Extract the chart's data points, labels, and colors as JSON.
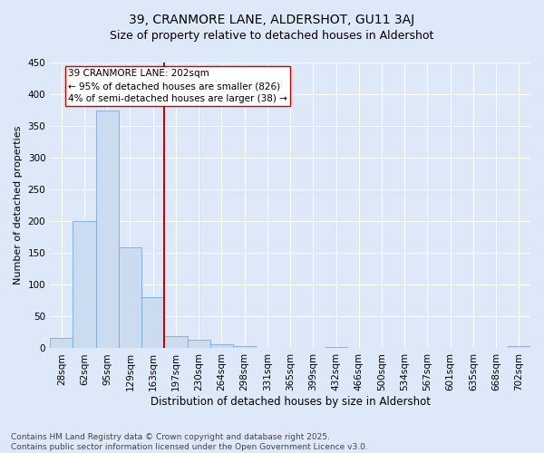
{
  "title": "39, CRANMORE LANE, ALDERSHOT, GU11 3AJ",
  "subtitle": "Size of property relative to detached houses in Aldershot",
  "xlabel": "Distribution of detached houses by size in Aldershot",
  "ylabel": "Number of detached properties",
  "categories": [
    "28sqm",
    "62sqm",
    "95sqm",
    "129sqm",
    "163sqm",
    "197sqm",
    "230sqm",
    "264sqm",
    "298sqm",
    "331sqm",
    "365sqm",
    "399sqm",
    "432sqm",
    "466sqm",
    "500sqm",
    "534sqm",
    "567sqm",
    "601sqm",
    "635sqm",
    "668sqm",
    "702sqm"
  ],
  "values": [
    16,
    201,
    375,
    159,
    80,
    19,
    13,
    6,
    4,
    0,
    0,
    0,
    2,
    0,
    0,
    0,
    0,
    0,
    0,
    0,
    3
  ],
  "bar_color": "#ccdcf0",
  "bar_edge_color": "#7aaadc",
  "vline_x_index": 5,
  "vline_color": "#cc0000",
  "annotation_text": "39 CRANMORE LANE: 202sqm\n← 95% of detached houses are smaller (826)\n4% of semi-detached houses are larger (38) →",
  "annotation_box_color": "#ffffff",
  "annotation_box_edge": "#cc0000",
  "ylim": [
    0,
    450
  ],
  "yticks": [
    0,
    50,
    100,
    150,
    200,
    250,
    300,
    350,
    400,
    450
  ],
  "bg_color": "#dde8f8",
  "plot_bg_color": "#dde8f8",
  "grid_color": "#ffffff",
  "footer": "Contains HM Land Registry data © Crown copyright and database right 2025.\nContains public sector information licensed under the Open Government Licence v3.0.",
  "title_fontsize": 10,
  "subtitle_fontsize": 9,
  "xlabel_fontsize": 8.5,
  "ylabel_fontsize": 8,
  "tick_fontsize": 7.5,
  "annotation_fontsize": 7.5,
  "footer_fontsize": 6.5
}
